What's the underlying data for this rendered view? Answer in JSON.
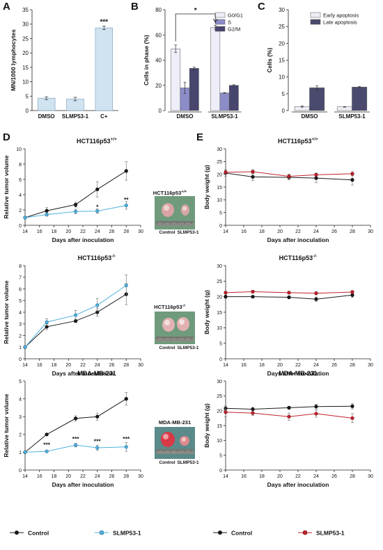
{
  "colors": {
    "control": "#1a1a1a",
    "slmp_blue": "#4fb1dd",
    "slmp_red": "#c0202a",
    "mn_bar": "#cfe3f1",
    "g0g1": "#eeeef8",
    "s": "#8c8cc8",
    "g2m": "#46466e",
    "early": "#eeeef4",
    "late": "#4a4a6e",
    "photo_bg": "#6f9b7c"
  },
  "panel_letters": [
    "A",
    "B",
    "C",
    "D",
    "E"
  ],
  "legend": {
    "control": "Control",
    "slmp53_blue": "SLMP53-1",
    "control_e": "Control",
    "slmp53_red": "SLMP53-1"
  },
  "photos": [
    {
      "title_base": "HCT116p53",
      "title_sup": "+/+",
      "labels": [
        "Control",
        "SLMP53-1"
      ]
    },
    {
      "title_base": "HCT116p53",
      "title_sup": "-/-",
      "labels": [
        "Control",
        "SLMP53-1"
      ]
    },
    {
      "title_base": "MDA-MB-231",
      "title_sup": "",
      "labels": [
        "Control",
        "SLMP53-1"
      ]
    }
  ],
  "chart_data": [
    {
      "id": "A",
      "type": "bar",
      "ylabel": "MN/1000 lymphocytes",
      "ylim": [
        0,
        35
      ],
      "yticks": [
        "0",
        "5",
        "10",
        "15",
        "20",
        "25",
        "30",
        "35"
      ],
      "categories": [
        "DMSO",
        "SLMP53-1",
        "C+"
      ],
      "values": [
        4.3,
        4.0,
        28.7
      ],
      "errors": [
        0.5,
        0.6,
        0.6
      ],
      "annotations": [
        {
          "category": "C+",
          "text": "***"
        }
      ]
    },
    {
      "id": "B",
      "type": "bar",
      "ylabel": "Cells in phase (%)",
      "ylim": [
        0,
        80
      ],
      "yticks": [
        "0",
        "20",
        "40",
        "60",
        "80"
      ],
      "categories": [
        "DMSO",
        "SLMP53-1"
      ],
      "series": [
        {
          "name": "G0/G1",
          "values": [
            49,
            66
          ],
          "errors": [
            3,
            1.5
          ]
        },
        {
          "name": "S",
          "values": [
            18,
            14
          ],
          "errors": [
            4.5,
            0.3
          ]
        },
        {
          "name": "G2/M",
          "values": [
            33.5,
            20
          ],
          "errors": [
            1,
            0.5
          ]
        }
      ],
      "legend_position": "top-right",
      "annotations": [
        {
          "text": "*"
        }
      ]
    },
    {
      "id": "C",
      "type": "bar",
      "ylabel": "Cells (%)",
      "ylim": [
        0,
        30
      ],
      "yticks": [
        "0",
        "5",
        "10",
        "15",
        "20",
        "25",
        "30"
      ],
      "categories": [
        "DMSO",
        "SLMP53-1"
      ],
      "series": [
        {
          "name": "Early apoptosis",
          "values": [
            1.2,
            1.1
          ],
          "errors": [
            0.2,
            0.1
          ]
        },
        {
          "name": "Late apoptosis",
          "values": [
            6.8,
            7.0
          ],
          "errors": [
            0.6,
            0.2
          ]
        }
      ],
      "legend_position": "top-right"
    },
    {
      "id": "D1",
      "type": "line",
      "title_base": "HCT116p53",
      "title_sup": "+/+",
      "xlabel": "Days after inoculation",
      "ylabel": "Relative tumor volume",
      "x": [
        14,
        17,
        21,
        24,
        28
      ],
      "xlim": [
        14,
        30
      ],
      "xticks": [
        "14",
        "16",
        "18",
        "20",
        "22",
        "24",
        "26",
        "28",
        "30"
      ],
      "ylim": [
        0,
        10
      ],
      "yticks": [
        "0",
        "2",
        "4",
        "6",
        "8",
        "10"
      ],
      "series": [
        {
          "name": "Control",
          "values": [
            1,
            1.9,
            2.7,
            4.7,
            7.1
          ],
          "errors": [
            0,
            0.4,
            0.3,
            1.0,
            1.2
          ]
        },
        {
          "name": "SLMP53-1",
          "values": [
            1,
            1.4,
            1.8,
            1.85,
            2.6
          ],
          "errors": [
            0,
            0.2,
            0.3,
            0.3,
            0.5
          ]
        }
      ],
      "annotations": [
        {
          "x": 21,
          "y": 2.1,
          "text": "*"
        },
        {
          "x": 24,
          "y": 2.15,
          "text": "*"
        },
        {
          "x": 28,
          "y": 3.1,
          "text": "**"
        }
      ]
    },
    {
      "id": "D2",
      "type": "line",
      "title_base": "HCT116p53",
      "title_sup": "-/-",
      "xlabel": "Days after inoculation",
      "ylabel": "Relative tumor volume",
      "x": [
        14,
        17,
        21,
        24,
        28
      ],
      "xlim": [
        14,
        30
      ],
      "xticks": [
        "14",
        "16",
        "18",
        "20",
        "22",
        "24",
        "26",
        "28",
        "30"
      ],
      "ylim": [
        0,
        8
      ],
      "yticks": [
        "0",
        "1",
        "2",
        "3",
        "4",
        "5",
        "6",
        "7",
        "8"
      ],
      "series": [
        {
          "name": "Control",
          "values": [
            1,
            2.75,
            3.25,
            4.0,
            5.55
          ],
          "errors": [
            0,
            0.25,
            0.15,
            0.35,
            0.9
          ]
        },
        {
          "name": "SLMP53-1",
          "values": [
            1,
            3.15,
            3.75,
            4.6,
            6.3
          ],
          "errors": [
            0,
            0.3,
            0.4,
            0.55,
            0.9
          ]
        }
      ],
      "annotations": []
    },
    {
      "id": "D3",
      "type": "line",
      "title_base": "MDA-MB-231",
      "title_sup": "",
      "xlabel": "Days after inoculation",
      "ylabel": "Relative tumor volume",
      "x": [
        14,
        17,
        21,
        24,
        28
      ],
      "xlim": [
        14,
        30
      ],
      "xticks": [
        "14",
        "16",
        "18",
        "20",
        "22",
        "24",
        "26",
        "28",
        "30"
      ],
      "ylim": [
        0,
        5
      ],
      "yticks": [
        "0",
        "1",
        "2",
        "3",
        "4",
        "5"
      ],
      "series": [
        {
          "name": "Control",
          "values": [
            1,
            2.0,
            2.9,
            3.0,
            4.0
          ],
          "errors": [
            0,
            0.05,
            0.15,
            0.2,
            0.35
          ]
        },
        {
          "name": "SLMP53-1",
          "values": [
            1,
            1.05,
            1.4,
            1.25,
            1.3
          ],
          "errors": [
            0,
            0.05,
            0.1,
            0.15,
            0.25
          ]
        }
      ],
      "annotations": [
        {
          "x": 17,
          "y": 1.3,
          "text": "***"
        },
        {
          "x": 21,
          "y": 1.65,
          "text": "***"
        },
        {
          "x": 24,
          "y": 1.5,
          "text": "***"
        },
        {
          "x": 28,
          "y": 1.65,
          "text": "***"
        }
      ]
    },
    {
      "id": "E1",
      "type": "line",
      "title_base": "HCT116p53",
      "title_sup": "+/+",
      "xlabel": "Days after inoculation",
      "ylabel": "Body weight (g)",
      "x": [
        14,
        17,
        21,
        24,
        28
      ],
      "xlim": [
        14,
        30
      ],
      "xticks": [
        "14",
        "16",
        "18",
        "20",
        "22",
        "24",
        "26",
        "28",
        "30"
      ],
      "ylim": [
        0,
        30
      ],
      "yticks": [
        "0",
        "5",
        "10",
        "15",
        "20",
        "25",
        "30"
      ],
      "series": [
        {
          "name": "Control",
          "values": [
            20.5,
            19.0,
            18.8,
            18.5,
            17.8
          ],
          "errors": [
            1.2,
            1.5,
            1.0,
            1.8,
            2.0
          ]
        },
        {
          "name": "SLMP53-1",
          "values": [
            20.8,
            21.0,
            19.2,
            19.8,
            20.2
          ],
          "errors": [
            0.8,
            0.8,
            0.8,
            0.7,
            0.8
          ]
        }
      ]
    },
    {
      "id": "E2",
      "type": "line",
      "title_base": "HCT116p53",
      "title_sup": "-/-",
      "xlabel": "Days after inoculation",
      "ylabel": "Body weight (g)",
      "x": [
        14,
        17,
        21,
        24,
        28
      ],
      "xlim": [
        14,
        30
      ],
      "xticks": [
        "14",
        "16",
        "18",
        "20",
        "22",
        "24",
        "26",
        "28",
        "30"
      ],
      "ylim": [
        0,
        30
      ],
      "yticks": [
        "0",
        "5",
        "10",
        "15",
        "20",
        "25",
        "30"
      ],
      "series": [
        {
          "name": "Control",
          "values": [
            20.0,
            20.0,
            19.8,
            19.2,
            20.5
          ],
          "errors": [
            0.5,
            0.4,
            0.5,
            0.7,
            0.8
          ]
        },
        {
          "name": "SLMP53-1",
          "values": [
            21.3,
            21.6,
            21.3,
            21.1,
            21.5
          ],
          "errors": [
            0.4,
            0.4,
            0.4,
            0.5,
            0.5
          ]
        }
      ]
    },
    {
      "id": "E3",
      "type": "line",
      "title_base": "MDA-MB-231",
      "title_sup": "",
      "xlabel": "Days after inoculation",
      "ylabel": "Body weight (g)",
      "x": [
        14,
        17,
        21,
        24,
        28
      ],
      "xlim": [
        14,
        30
      ],
      "xticks": [
        "14",
        "16",
        "18",
        "20",
        "22",
        "24",
        "26",
        "28",
        "30"
      ],
      "ylim": [
        0,
        30
      ],
      "yticks": [
        "0",
        "5",
        "10",
        "15",
        "20",
        "25",
        "30"
      ],
      "series": [
        {
          "name": "Control",
          "values": [
            20.8,
            20.5,
            21.0,
            21.4,
            21.5
          ],
          "errors": [
            0.8,
            0.6,
            0.5,
            0.8,
            0.9
          ]
        },
        {
          "name": "SLMP53-1",
          "values": [
            19.5,
            19.2,
            18.0,
            19.0,
            17.5
          ],
          "errors": [
            1.5,
            0.8,
            1.2,
            1.2,
            1.5
          ]
        }
      ]
    }
  ]
}
